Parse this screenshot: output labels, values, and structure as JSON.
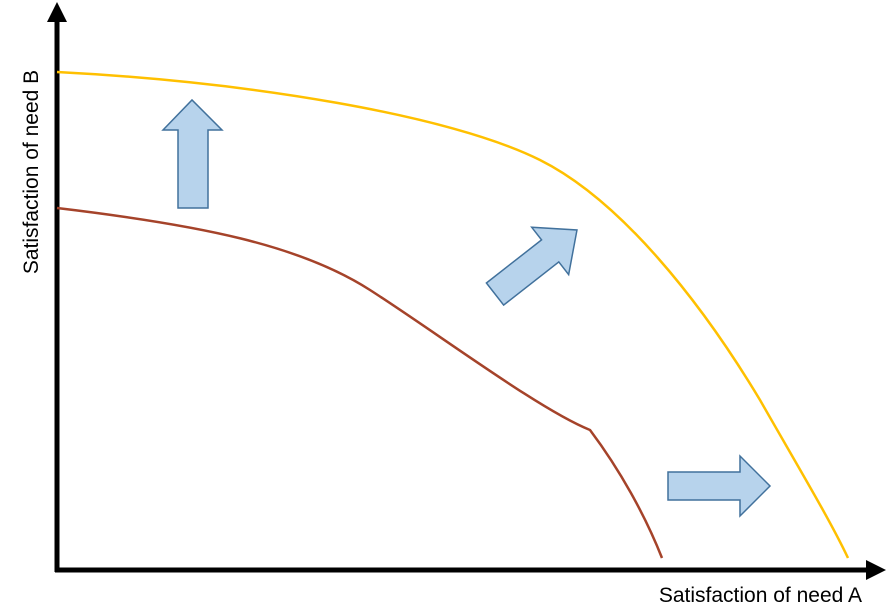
{
  "x_axis": {
    "label": "Satisfaction of need A"
  },
  "y_axis": {
    "label": "Satisfaction of need B"
  }
}
